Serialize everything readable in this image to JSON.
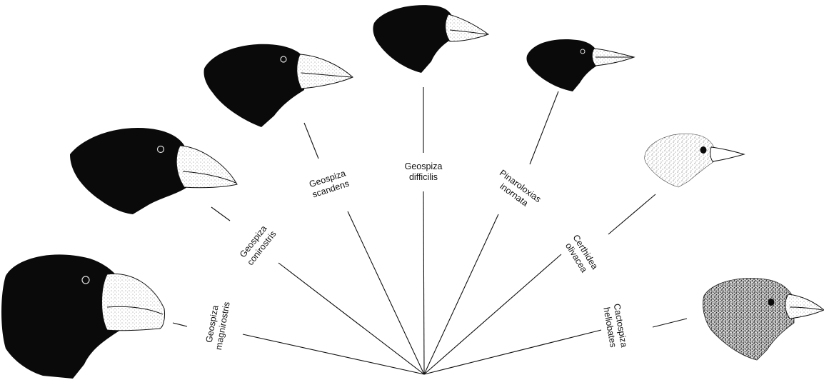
{
  "colors": {
    "ink": "#0a0a0a",
    "beak": "#f2f0ec",
    "background": "#ffffff"
  },
  "species": [
    {
      "id": "magnirostris",
      "genus": "Geospiza",
      "epithet": "magnirostris",
      "icon": "large-ground-finch-head"
    },
    {
      "id": "conirostris",
      "genus": "Geospiza",
      "epithet": "conirostris",
      "icon": "large-cactus-finch-head"
    },
    {
      "id": "scandens",
      "genus": "Geospiza",
      "epithet": "scandens",
      "icon": "cactus-finch-head"
    },
    {
      "id": "difficilis",
      "genus": "Geospiza",
      "epithet": "difficilis",
      "icon": "sharp-beaked-finch-head"
    },
    {
      "id": "inornata",
      "genus": "Pinaroloxias",
      "epithet": "inornata",
      "icon": "cocos-finch-head"
    },
    {
      "id": "olivacea",
      "genus": "Certhidea",
      "epithet": "olivacea",
      "icon": "warbler-finch-head"
    },
    {
      "id": "heliobates",
      "genus": "Cactospiza",
      "epithet": "heliobates",
      "icon": "mangrove-finch-head"
    }
  ]
}
